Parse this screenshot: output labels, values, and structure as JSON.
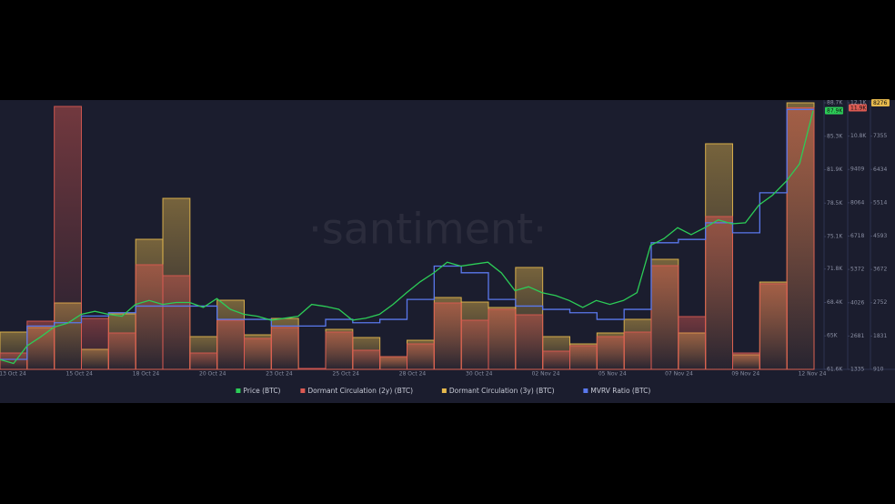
{
  "chart_data": {
    "type": "line",
    "watermark": "·santiment·",
    "x_labels": [
      "13 Oct 24",
      "15 Oct 24",
      "18 Oct 24",
      "20 Oct 24",
      "23 Oct 24",
      "25 Oct 24",
      "28 Oct 24",
      "30 Oct 24",
      "02 Nov 24",
      "05 Nov 24",
      "07 Nov 24",
      "09 Nov 24",
      "12 Nov 24"
    ],
    "ylim": [
      61600,
      88700
    ],
    "yticks": [
      {
        "value": 61600,
        "label": "61.6K"
      },
      {
        "value": 65000,
        "label": "65K"
      },
      {
        "value": 68400,
        "label": "68.4K"
      },
      {
        "value": 71800,
        "label": "71.8K"
      },
      {
        "value": 75100,
        "label": "75.1K"
      },
      {
        "value": 78500,
        "label": "78.5K"
      },
      {
        "value": 81900,
        "label": "81.9K"
      },
      {
        "value": 85300,
        "label": "85.3K"
      },
      {
        "value": 88700,
        "label": "88.7K"
      }
    ],
    "y2lim": [
      1335,
      12100
    ],
    "y2ticks": [
      1335,
      2681,
      4026,
      5372,
      6718,
      8064,
      9409,
      {
        "value": 10755,
        "label": "10.8K"
      },
      {
        "value": 12100,
        "label": "12.1K"
      }
    ],
    "y3lim": [
      910,
      8276
    ],
    "y3ticks": [
      910,
      1831,
      2752,
      3672,
      4593,
      5514,
      6434,
      7355,
      8276
    ],
    "y4lim": [
      1.8,
      2.6
    ],
    "series": [
      {
        "name": "Dormant Circulation (3y) (BTC)",
        "color": "#e6b94d",
        "type": "step-area",
        "axis": "y3",
        "last_label": "8276",
        "values": [
          1941,
          2066,
          2745,
          1463,
          2444,
          4505,
          5636,
          1815,
          2821,
          1865,
          2318,
          900,
          2016,
          1790,
          1262,
          1714,
          2896,
          2770,
          2620,
          3726,
          1815,
          1614,
          1916,
          2293,
          3952,
          1916,
          7145,
          1312,
          3323,
          8276
        ]
      },
      {
        "name": "Dormant Circulation (2y) (BTC)",
        "color": "#dc5a52",
        "type": "step-area",
        "axis": "y2",
        "last_label": "11.9K",
        "values": [
          1996,
          3282,
          11953,
          3392,
          2805,
          5560,
          5119,
          1996,
          3319,
          2584,
          3025,
          1372,
          2841,
          2107,
          1849,
          2364,
          4017,
          3319,
          3760,
          3539,
          2070,
          2290,
          2658,
          2841,
          5523,
          3466,
          7507,
          1996,
          4789,
          11900
        ]
      },
      {
        "name": "MVRV Ratio (BTC)",
        "color": "#5a78ec",
        "type": "step",
        "axis": "y4",
        "values": [
          1.83,
          1.93,
          1.94,
          1.96,
          1.97,
          1.99,
          1.99,
          1.99,
          1.95,
          1.95,
          1.93,
          1.93,
          1.95,
          1.94,
          1.95,
          2.01,
          2.11,
          2.09,
          2.01,
          1.99,
          1.98,
          1.97,
          1.95,
          1.98,
          2.18,
          2.19,
          2.24,
          2.21,
          2.33,
          2.58
        ]
      },
      {
        "name": "Price (BTC)",
        "color": "#2ccd57",
        "type": "line",
        "axis": "y",
        "last_label": "87.9K",
        "values": [
          62600,
          62200,
          64000,
          64900,
          65900,
          66300,
          67200,
          67500,
          67200,
          67000,
          68200,
          68600,
          68200,
          68400,
          68400,
          67900,
          68800,
          67700,
          67200,
          67000,
          66600,
          66800,
          67000,
          68200,
          68000,
          67700,
          66600,
          66800,
          67200,
          68200,
          69400,
          70500,
          71400,
          72500,
          72100,
          72300,
          72500,
          71400,
          69600,
          70000,
          69400,
          69100,
          68600,
          67900,
          68600,
          68200,
          68600,
          69400,
          74200,
          74900,
          76000,
          75300,
          76000,
          76800,
          76400,
          76500,
          78300,
          79300,
          80700,
          82500,
          87900
        ]
      }
    ],
    "legend_order": [
      3,
      1,
      0,
      2
    ]
  }
}
